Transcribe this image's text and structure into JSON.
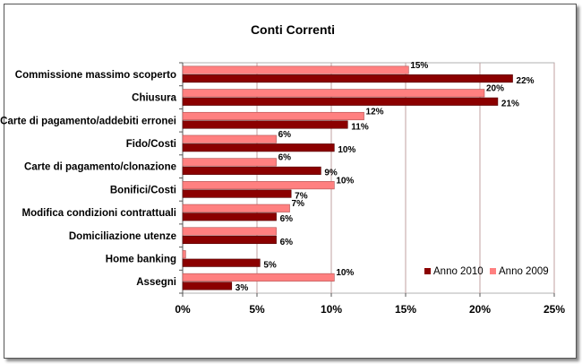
{
  "chart_data": {
    "type": "bar",
    "orientation": "horizontal",
    "title": "Conti Correnti",
    "categories": [
      "Commissione massimo scoperto",
      "Chiusura",
      "Carte di pagamento/addebiti erronei",
      "Fido/Costi",
      "Carte di pagamento/clonazione",
      "Bonifici/Costi",
      "Modifica condizioni contrattuali",
      "Domiciliazione utenze",
      "Home banking",
      "Assegni"
    ],
    "series": [
      {
        "name": "Anno 2010",
        "color": "#8b0000",
        "values": [
          22.2,
          21.2,
          11.1,
          10.2,
          9.3,
          7.3,
          6.3,
          6.3,
          5.2,
          3.3
        ],
        "labels": [
          "22%",
          "21%",
          "11%",
          "10%",
          "9%",
          "7%",
          "6%",
          "6%",
          "5%",
          "3%"
        ]
      },
      {
        "name": "Anno 2009",
        "color": "#ff8080",
        "values": [
          15.2,
          20.3,
          12.2,
          6.3,
          6.3,
          10.2,
          7.2,
          6.3,
          0.2,
          10.2
        ],
        "labels": [
          "15%",
          "20%",
          "12%",
          "6%",
          "6%",
          "10%",
          "7%",
          "",
          "",
          "10%"
        ]
      }
    ],
    "xlim": [
      0,
      25
    ],
    "ticks": [
      "0%",
      "5%",
      "10%",
      "15%",
      "20%",
      "25%"
    ],
    "grid": true,
    "legend_position": "bottom-right"
  }
}
